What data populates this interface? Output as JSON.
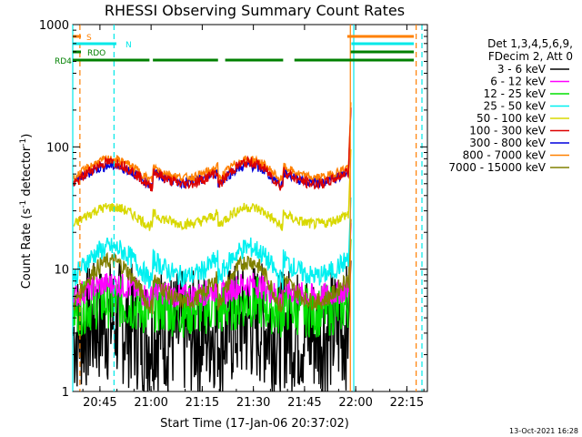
{
  "chart_data": {
    "type": "line",
    "title": "RHESSI Observing Summary Count Rates",
    "xlabel": "Start Time (17-Jan-06 20:37:02)",
    "ylabel_main": "Count Rate (s",
    "ylabel_sup1": "-1",
    "ylabel_mid": " detector",
    "ylabel_sup2": "-1",
    "ylabel_end": ")",
    "yscale": "log",
    "ylim": [
      1,
      1000
    ],
    "x_range_minutes": [
      0,
      104
    ],
    "x_ticks": [
      {
        "label": "20:45",
        "minute": 7.97
      },
      {
        "label": "21:00",
        "minute": 22.97
      },
      {
        "label": "21:15",
        "minute": 37.97
      },
      {
        "label": "21:30",
        "minute": 52.97
      },
      {
        "label": "21:45",
        "minute": 67.97
      },
      {
        "label": "22:00",
        "minute": 82.97
      },
      {
        "label": "22:15",
        "minute": 97.97
      }
    ],
    "y_ticks": [
      {
        "label": "1",
        "value": 1
      },
      {
        "label": "10",
        "value": 10
      },
      {
        "label": "100",
        "value": 100
      },
      {
        "label": "1000",
        "value": 1000
      }
    ],
    "legend_header": [
      "Det 1,3,4,5,6,9,",
      "FDecim 2, Att 0"
    ],
    "series": [
      {
        "name": "3 - 6 keV",
        "color": "#000000",
        "base": 3.2,
        "amp": 0.25,
        "noise": 0.6
      },
      {
        "name": "6 - 12 keV",
        "color": "#ff00ff",
        "base": 6.5,
        "amp": 0.25,
        "noise": 0.12
      },
      {
        "name": "12 - 25 keV",
        "color": "#00e000",
        "base": 4.8,
        "amp": 0.2,
        "noise": 0.25
      },
      {
        "name": "25 - 50 keV",
        "color": "#00f0f0",
        "base": 10.5,
        "amp": 0.6,
        "noise": 0.1
      },
      {
        "name": "50 - 100 keV",
        "color": "#d8d800",
        "base": 26,
        "amp": 0.35,
        "noise": 0.05
      },
      {
        "name": "100 - 300 keV",
        "color": "#dd0000",
        "base": 57,
        "amp": 0.45,
        "noise": 0.05
      },
      {
        "name": "300 - 800 keV",
        "color": "#0000dd",
        "base": 57,
        "amp": 0.35,
        "noise": 0.05
      },
      {
        "name": "800 - 7000 keV",
        "color": "#ff8000",
        "base": 63,
        "amp": 0.38,
        "noise": 0.04
      },
      {
        "name": "7000 - 15000 keV",
        "color": "#808000",
        "base": 7.0,
        "amp": 0.85,
        "noise": 0.08
      }
    ],
    "orbit_segments_minutes": [
      [
        0,
        23.5
      ],
      [
        23.5,
        42.6
      ],
      [
        42.6,
        61.7
      ],
      [
        61.7,
        80.8
      ]
    ],
    "flags": [
      {
        "label": "S",
        "color": "#ff8000",
        "segments": [
          [
            0,
            2.4
          ],
          [
            80.5,
            100
          ]
        ]
      },
      {
        "label": "N",
        "color": "#00e8e8",
        "segments": [
          [
            0,
            12.8
          ],
          [
            81.7,
            100
          ]
        ]
      },
      {
        "label": "RDO",
        "color": "#008000",
        "segments": [
          [
            0,
            2.4
          ],
          [
            81.5,
            100
          ]
        ]
      },
      {
        "label": "RD4",
        "color": "#008000",
        "segments": [
          [
            0,
            22.5
          ],
          [
            23.5,
            42.6
          ],
          [
            44.7,
            61.7
          ],
          [
            65.0,
            100
          ]
        ]
      }
    ],
    "vertical_lines": [
      {
        "color": "#00e8e8",
        "style": "solid",
        "minute": 0
      },
      {
        "color": "#ff8000",
        "style": "dashed",
        "minute": 2.1
      },
      {
        "color": "#00e8e8",
        "style": "dashed",
        "minute": 12.1
      },
      {
        "color": "#ff8000",
        "style": "solid",
        "minute": 81.4
      },
      {
        "color": "#00e8e8",
        "style": "solid",
        "minute": 82.4
      },
      {
        "color": "#ff8000",
        "style": "dashed",
        "minute": 100.7
      },
      {
        "color": "#00e8e8",
        "style": "dashed",
        "minute": 102.4
      }
    ]
  },
  "footer": {
    "timestamp": "13-Oct-2021 16:28"
  }
}
